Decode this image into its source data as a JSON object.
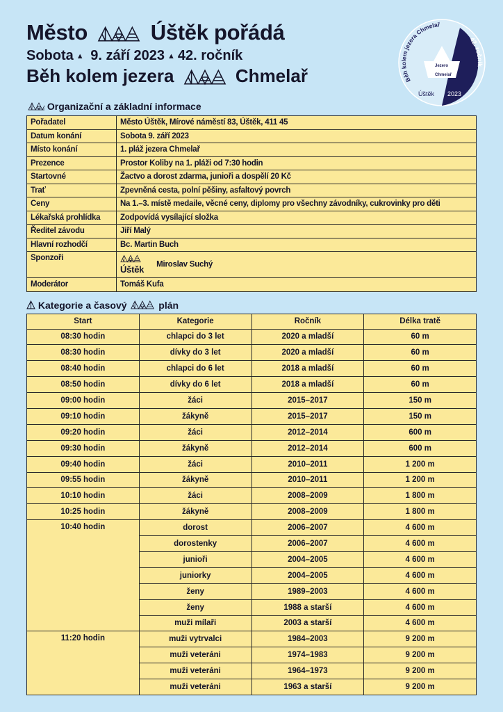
{
  "header": {
    "line1_a": "Město",
    "line1_b": "Úštěk pořádá",
    "line2_a": "Sobota",
    "line2_b": "9. září 2023",
    "line2_c": "42. ročník",
    "line3_a": "Běh kolem jezera",
    "line3_b": "Chmelař"
  },
  "badge": {
    "arc_text": "Běh kolem jezera Chmelař",
    "edition": "42. ročník",
    "boat_line1": "Jezero",
    "boat_line2": "Chmelař",
    "town": "Úštěk",
    "year": "2023",
    "colors": {
      "navy": "#1e1e5a",
      "light": "#d8ecf8"
    }
  },
  "info_section": {
    "title": "Organizační a základní informace",
    "rows": [
      {
        "label": "Pořadatel",
        "value": "Město Úštěk, Mírové náměstí 83, Úštěk, 411 45"
      },
      {
        "label": "Datum konání",
        "value": "Sobota 9. září 2023"
      },
      {
        "label": "Místo konání",
        "value": "1. pláž jezera Chmelař"
      },
      {
        "label": "Prezence",
        "value": "Prostor Koliby na 1. pláži od 7:30 hodin"
      },
      {
        "label": "Startovné",
        "value": "Žactvo a dorost zdarma, junioři a dospělí 20 Kč"
      },
      {
        "label": "Trať",
        "value": "Zpevněná cesta, polní pěšiny, asfaltový povrch"
      },
      {
        "label": "Ceny",
        "value": "Na 1.–3. místě medaile, věcné ceny, diplomy pro všechny závodníky, cukrovinky pro děti"
      },
      {
        "label": "Lékařská prohlídka",
        "value": "Zodpovídá vysílající složka"
      },
      {
        "label": "Ředitel závodu",
        "value": "Jiří Malý"
      },
      {
        "label": "Hlavní rozhodčí",
        "value": "Bc. Martin Buch"
      },
      {
        "label": "Sponzoři",
        "sponsor_logo": "Úštěk",
        "value": "Miroslav Suchý"
      },
      {
        "label": "Moderátor",
        "value": "Tomáš Kufa"
      }
    ]
  },
  "schedule_section": {
    "title_a": "Kategorie a časový",
    "title_b": "plán",
    "columns": [
      "Start",
      "Kategorie",
      "Ročník",
      "Délka tratě"
    ],
    "groups": [
      {
        "start": "08:30 hodin",
        "rows": [
          [
            "chlapci do 3 let",
            "2020 a mladší",
            "60 m"
          ]
        ]
      },
      {
        "start": "08:30 hodin",
        "rows": [
          [
            "dívky do 3 let",
            "2020 a mladší",
            "60 m"
          ]
        ]
      },
      {
        "start": "08:40 hodin",
        "rows": [
          [
            "chlapci do 6 let",
            "2018 a mladší",
            "60 m"
          ]
        ]
      },
      {
        "start": "08:50 hodin",
        "rows": [
          [
            "dívky do 6 let",
            "2018 a mladší",
            "60 m"
          ]
        ]
      },
      {
        "start": "09:00 hodin",
        "rows": [
          [
            "žáci",
            "2015–2017",
            "150 m"
          ]
        ]
      },
      {
        "start": "09:10 hodin",
        "rows": [
          [
            "žákyně",
            "2015–2017",
            "150 m"
          ]
        ]
      },
      {
        "start": "09:20 hodin",
        "rows": [
          [
            "žáci",
            "2012–2014",
            "600 m"
          ]
        ]
      },
      {
        "start": "09:30 hodin",
        "rows": [
          [
            "žákyně",
            "2012–2014",
            "600 m"
          ]
        ]
      },
      {
        "start": "09:40 hodin",
        "rows": [
          [
            "žáci",
            "2010–2011",
            "1 200 m"
          ]
        ]
      },
      {
        "start": "09:55 hodin",
        "rows": [
          [
            "žákyně",
            "2010–2011",
            "1 200 m"
          ]
        ]
      },
      {
        "start": "10:10 hodin",
        "rows": [
          [
            "žáci",
            "2008–2009",
            "1 800 m"
          ]
        ]
      },
      {
        "start": "10:25 hodin",
        "rows": [
          [
            "žákyně",
            "2008–2009",
            "1 800 m"
          ]
        ]
      },
      {
        "start": "10:40 hodin",
        "rows": [
          [
            "dorost",
            "2006–2007",
            "4 600 m"
          ],
          [
            "dorostenky",
            "2006–2007",
            "4 600 m"
          ],
          [
            "junioři",
            "2004–2005",
            "4 600 m"
          ],
          [
            "juniorky",
            "2004–2005",
            "4 600 m"
          ],
          [
            "ženy",
            "1989–2003",
            "4 600 m"
          ],
          [
            "ženy",
            "1988 a starší",
            "4 600 m"
          ],
          [
            "muži mílaři",
            "2003 a starší",
            "4 600 m"
          ]
        ]
      },
      {
        "start": "11:20 hodin",
        "rows": [
          [
            "muži vytrvalci",
            "1984–2003",
            "9 200 m"
          ],
          [
            "muži veteráni",
            "1974–1983",
            "9 200 m"
          ],
          [
            "muži veteráni",
            "1964–1973",
            "9 200 m"
          ],
          [
            "muži veteráni",
            "1963 a starší",
            "9 200 m"
          ]
        ]
      }
    ]
  }
}
